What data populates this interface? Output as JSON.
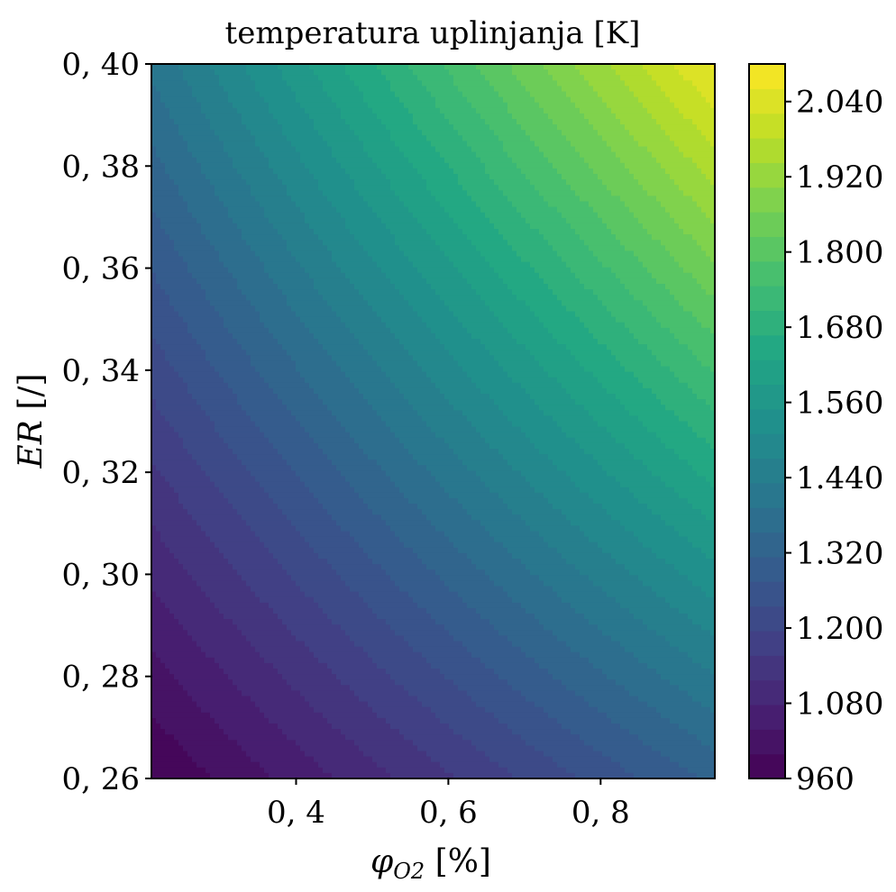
{
  "chart_data": {
    "type": "heatmap",
    "subtype": "filled-contour",
    "title": "temperatura uplinjanja [K]",
    "xlabel": {
      "symbol": "φ",
      "subscript": "O2",
      "unit": " [%]"
    },
    "ylabel": {
      "symbol": "ER",
      "unit": " [/]"
    },
    "xlim": [
      0.21,
      0.95
    ],
    "ylim": [
      0.26,
      0.4
    ],
    "x_ticks": [
      0.4,
      0.6,
      0.8
    ],
    "x_tick_labels": [
      "0, 4",
      "0, 6",
      "0, 8"
    ],
    "y_ticks": [
      0.26,
      0.28,
      0.3,
      0.32,
      0.34,
      0.36,
      0.38,
      0.4
    ],
    "y_tick_labels": [
      "0, 26",
      "0, 28",
      "0, 30",
      "0, 32",
      "0, 34",
      "0, 36",
      "0, 38",
      "0, 40"
    ],
    "colorbar": {
      "colormap": "viridis",
      "range": [
        960,
        2100
      ],
      "level_step": 40,
      "ticks": [
        960,
        1080,
        1200,
        1320,
        1440,
        1560,
        1680,
        1800,
        1920,
        2040
      ],
      "tick_labels": [
        "960",
        "1.080",
        "1.200",
        "1.320",
        "1.440",
        "1.560",
        "1.680",
        "1.800",
        "1.920",
        "2.040"
      ]
    },
    "corner_values": {
      "x_min_y_min": 960,
      "x_max_y_min": 1330,
      "x_min_y_max": 1410,
      "x_max_y_max": 2090
    },
    "grid": false
  }
}
